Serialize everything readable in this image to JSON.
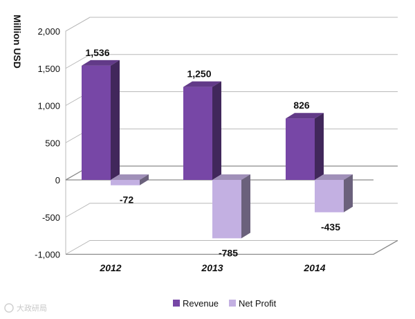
{
  "chart_data": {
    "type": "bar",
    "title": "",
    "xlabel": "",
    "ylabel": "Million  USD",
    "categories": [
      "2012",
      "2013",
      "2014"
    ],
    "series": [
      {
        "name": "Revenue",
        "values": [
          1536,
          1250,
          826
        ],
        "labels": [
          "1,536",
          "1,250",
          "826"
        ],
        "color": "#7747a6"
      },
      {
        "name": "Net Profit",
        "values": [
          -72,
          -785,
          -435
        ],
        "labels": [
          "-72",
          "-785",
          "-435"
        ],
        "color": "#c3b0e2"
      }
    ],
    "ylim": [
      -1000,
      2000
    ],
    "yticks": [
      2000,
      1500,
      1000,
      500,
      0,
      -500,
      -1000
    ],
    "ytick_labels": [
      "2,000",
      "1,500",
      "1,000",
      "500",
      "0",
      "-500",
      "-1,000"
    ],
    "grid": true,
    "legend_position": "bottom"
  },
  "watermark": {
    "text": "大政研局"
  }
}
